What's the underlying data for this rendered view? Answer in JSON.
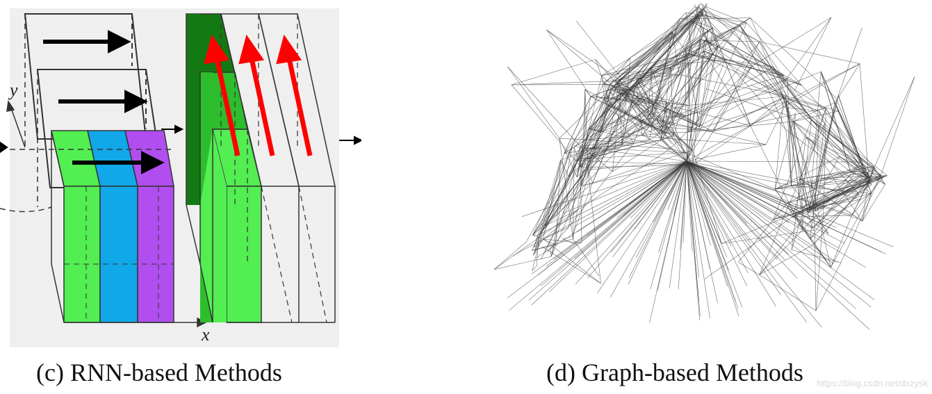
{
  "panel_c": {
    "caption": "(c) RNN-based Methods",
    "axis_x": "x",
    "axis_y": "y",
    "colors": {
      "background": "#efefef",
      "green": "#52ee52",
      "blue": "#10a8e8",
      "purple": "#b04ef0",
      "dark_green": "#137a13",
      "mid_green": "#2dbd2d",
      "arrow_black": "#000000",
      "arrow_red": "#ff0000"
    }
  },
  "panel_d": {
    "caption": "(d) Graph-based Methods",
    "watermark": "https://blog.csdn.net/dxzysk",
    "colors": {
      "edges": "#3a3a3a",
      "background": "#ffffff"
    }
  }
}
